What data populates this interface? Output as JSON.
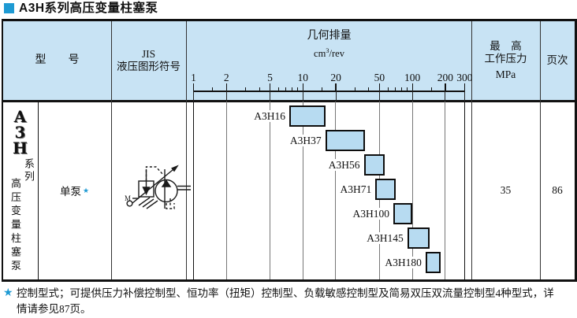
{
  "title": {
    "text": "A3H系列高压变量柱塞泵"
  },
  "colors": {
    "accent_blue": "#1e9ad3",
    "header_bg": "#c8e3f4",
    "bar_fill": "#b7dbf1",
    "bar_border": "#0e0e0e",
    "gridline_gray": "#777777"
  },
  "header": {
    "model": "型　　号",
    "jis_line1": "JIS",
    "jis_line2": "液压图形符号",
    "pressure_line1": "最　高",
    "pressure_line2": "工作压力",
    "pressure_unit": "MPa",
    "page": "页次"
  },
  "sidebar": {
    "logo_letters": [
      "A",
      "3",
      "H"
    ],
    "series_label": "系列",
    "product_label": "高压变量柱塞泵"
  },
  "model_cell": {
    "value": "单泵",
    "star": "★"
  },
  "jis_symbol": {
    "name": "pressure-compensated-variable-displacement-piston-pump",
    "label_m": "M"
  },
  "pressure_value": "35",
  "page_value": "86",
  "chart_data": {
    "type": "bar",
    "subtype": "horizontal-range-bars-log-axis",
    "title": "几何排量",
    "unit_prefix": "cm",
    "unit_sup": "3",
    "unit_suffix": "/rev",
    "xlim": [
      1,
      300
    ],
    "axis_ticks": [
      1,
      2,
      5,
      10,
      20,
      50,
      100,
      200,
      300
    ],
    "minor_ticks": [
      1.5,
      3,
      4,
      6,
      7,
      8,
      9,
      15,
      30,
      40,
      60,
      70,
      80,
      90,
      150
    ],
    "grid": true,
    "series": [
      {
        "name": "A3H16",
        "range": [
          7.5,
          16
        ]
      },
      {
        "name": "A3H37",
        "range": [
          16,
          37
        ]
      },
      {
        "name": "A3H56",
        "range": [
          36,
          56
        ]
      },
      {
        "name": "A3H71",
        "range": [
          46,
          71
        ]
      },
      {
        "name": "A3H100",
        "range": [
          67,
          100
        ]
      },
      {
        "name": "A3H145",
        "range": [
          90,
          145
        ]
      },
      {
        "name": "A3H180",
        "range": [
          132,
          180
        ]
      }
    ]
  },
  "footnote": {
    "star": "★",
    "text": "控制型式；可提供压力补偿控制型、恒功率（扭矩）控制型、负载敏感控制型及简易双压双流量控制型4种型式，详情请参见87页。"
  }
}
